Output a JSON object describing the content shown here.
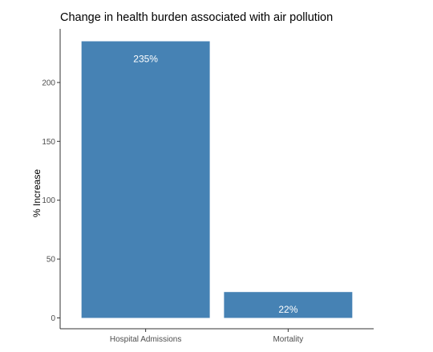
{
  "chart_data": {
    "type": "bar",
    "title": "Change in health burden associated with air pollution",
    "ylabel": "% Increase",
    "xlabel": "",
    "categories": [
      "Hospital Admissions",
      "Mortality"
    ],
    "values": [
      235,
      22
    ],
    "data_labels": [
      "235%",
      "22%"
    ],
    "ylim": [
      0,
      247
    ],
    "yticks": [
      0,
      50,
      100,
      150,
      200
    ],
    "grid": false,
    "bar_color": "#4682b4"
  }
}
